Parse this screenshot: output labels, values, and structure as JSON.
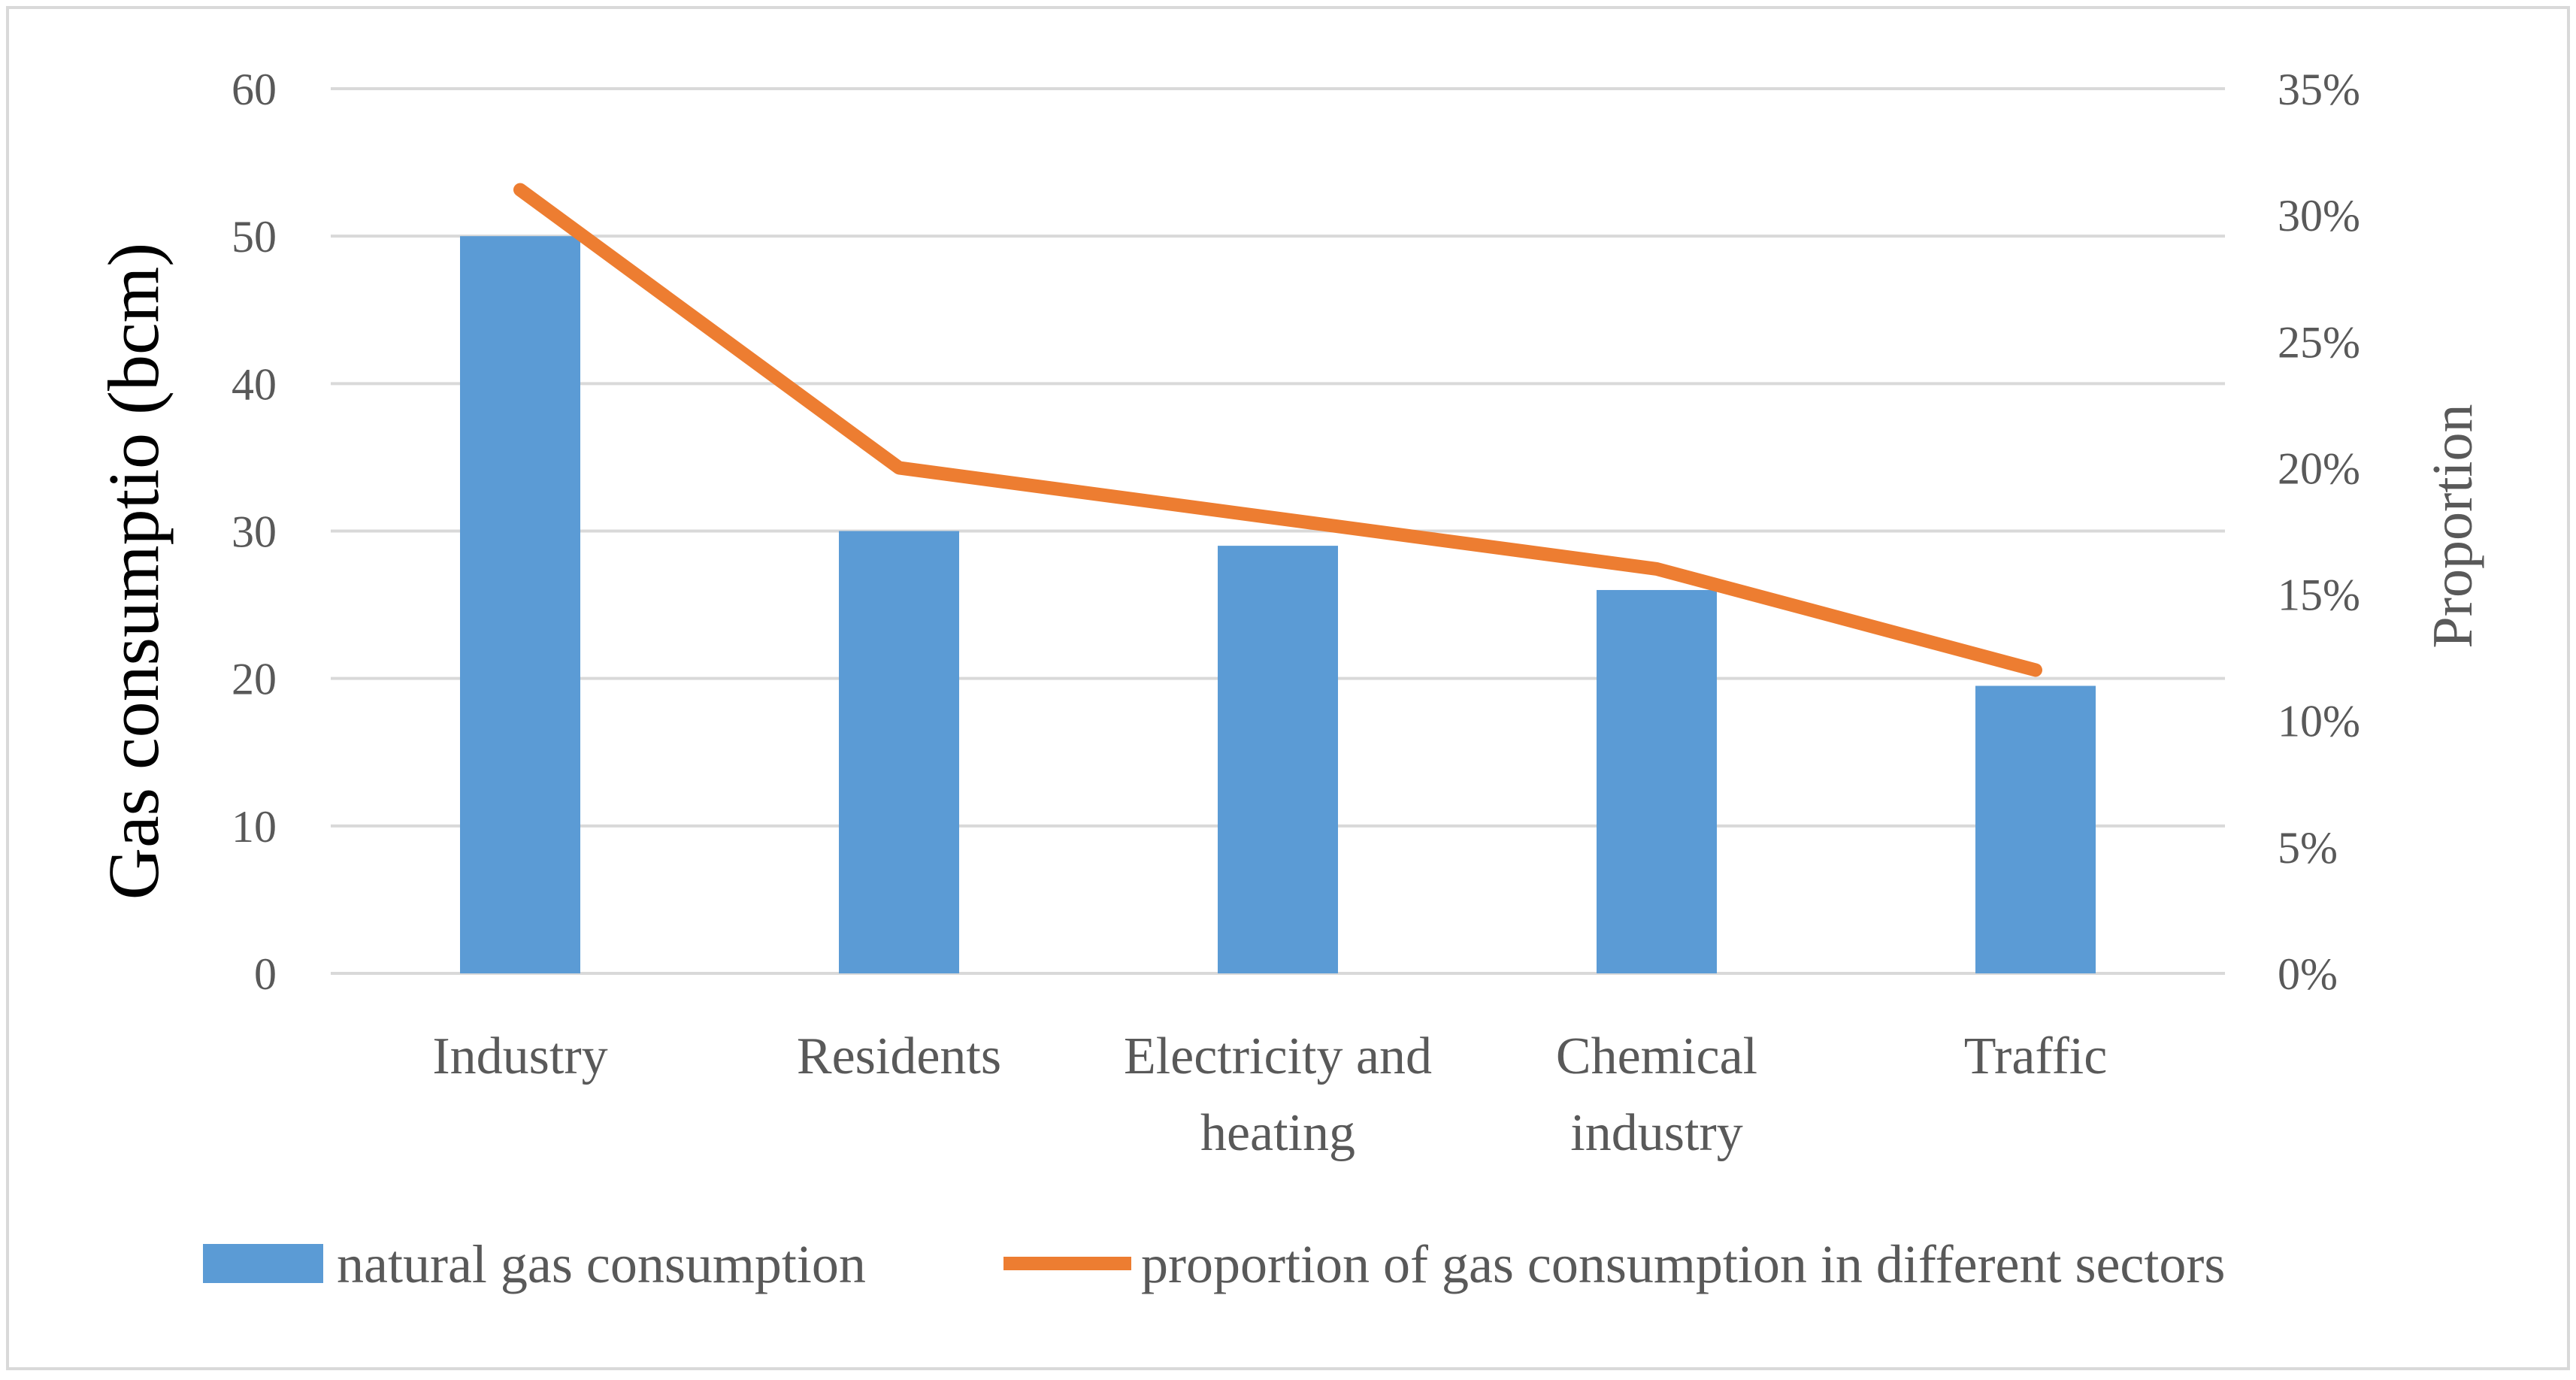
{
  "chart_data": {
    "type": "bar+line",
    "categories": [
      [
        "Industry"
      ],
      [
        "Residents"
      ],
      [
        "Electricity and",
        "heating"
      ],
      [
        "Chemical",
        "industry"
      ],
      [
        "Traffic"
      ]
    ],
    "series": [
      {
        "name": "natural gas consumption",
        "type": "bar",
        "axis": "left",
        "color": "#5b9bd5",
        "values": [
          50,
          30,
          29,
          26,
          19.5
        ]
      },
      {
        "name": "proportion of gas consumption in different sectors",
        "type": "line",
        "axis": "right",
        "color": "#ed7d31",
        "values": [
          0.31,
          0.2,
          0.18,
          0.16,
          0.12
        ]
      }
    ],
    "ylabel_left": "Gas consumptio (bcm)",
    "ylabel_right": "Proportion",
    "ylim_left": [
      0,
      60
    ],
    "yticks_left": [
      "0",
      "10",
      "20",
      "30",
      "40",
      "50",
      "60"
    ],
    "ylim_right": [
      0,
      0.35
    ],
    "yticks_right": [
      "0%",
      "5%",
      "10%",
      "15%",
      "20%",
      "25%",
      "30%",
      "35%"
    ],
    "grid": true,
    "legend_position": "bottom"
  }
}
